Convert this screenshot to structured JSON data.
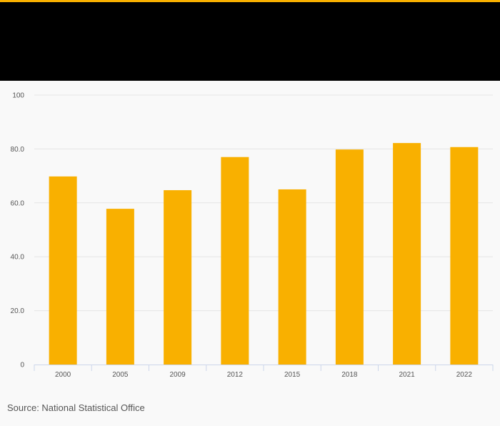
{
  "colors": {
    "accent": "#f9b000",
    "header_background": "#000000",
    "bar": "#f9b000",
    "background": "#f9f9f9"
  },
  "source": "Source: National Statistical Office",
  "chart_data": {
    "type": "bar",
    "title": "",
    "xlabel": "",
    "ylabel": "",
    "categories": [
      "2000",
      "2005",
      "2009",
      "2012",
      "2015",
      "2018",
      "2021",
      "2022"
    ],
    "values": [
      69.8,
      57.8,
      64.7,
      77.0,
      65.0,
      79.8,
      82.2,
      80.7
    ],
    "ylim": [
      0,
      100
    ],
    "yticks": [
      0,
      20,
      40,
      60,
      80,
      100
    ],
    "ytick_labels": [
      "0",
      "20.0",
      "40.0",
      "60.0",
      "80.0",
      "100"
    ],
    "grid": true,
    "legend": "none"
  }
}
